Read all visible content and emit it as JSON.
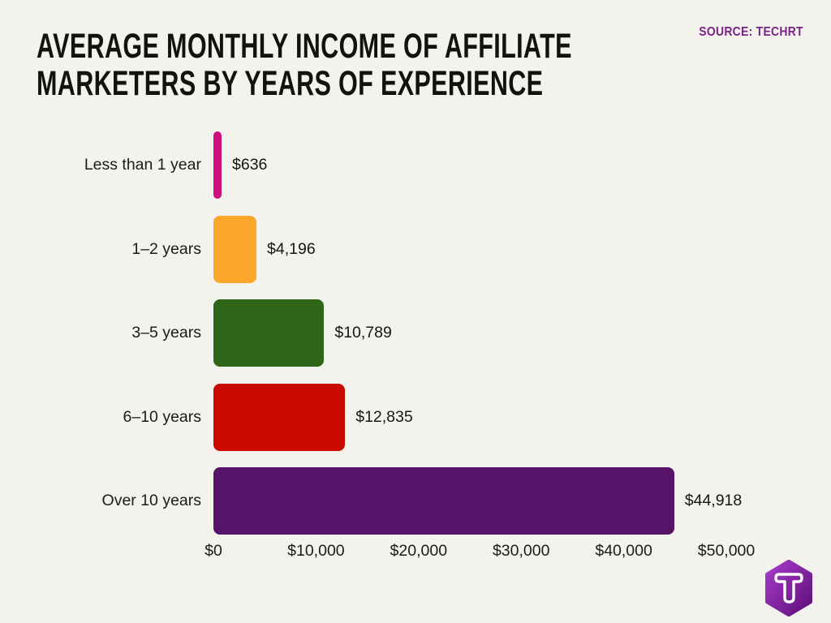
{
  "header": {
    "title_line1": "AVERAGE MONTHLY INCOME OF AFFILIATE",
    "title_line2": "MARKETERS BY YEARS OF EXPERIENCE",
    "source_label": "SOURCE: TECHRT"
  },
  "chart_data": {
    "type": "bar",
    "orientation": "horizontal",
    "title": "AVERAGE MONTHLY INCOME OF AFFILIATE MARKETERS BY YEARS OF EXPERIENCE",
    "source": "TECHRT",
    "categories": [
      "Less than 1 year",
      "1–2 years",
      "3–5 years",
      "6–10 years",
      "Over 10 years"
    ],
    "values": [
      636,
      4196,
      10789,
      12835,
      44918
    ],
    "value_labels": [
      "$636",
      "$4,196",
      "$10,789",
      "$12,835",
      "$44,918"
    ],
    "bar_colors": [
      "#CE0F7D",
      "#FBA72B",
      "#2F6517",
      "#CB0A02",
      "#551468"
    ],
    "xlabel": "",
    "ylabel": "",
    "xlim": [
      0,
      50000
    ],
    "x_ticks": [
      0,
      10000,
      20000,
      30000,
      40000,
      50000
    ],
    "x_tick_labels": [
      "$0",
      "$10,000",
      "$20,000",
      "$30,000",
      "$40,000",
      "$50,000"
    ],
    "grid": false,
    "legend": false
  },
  "branding": {
    "logo_letter": "T",
    "logo_color_light": "#A63BC9",
    "logo_color_dark": "#5F0F7A"
  },
  "colors": {
    "background": "#F3F2ED",
    "title": "#141210",
    "text": "#1B1B1B",
    "source": "#7B2288"
  }
}
